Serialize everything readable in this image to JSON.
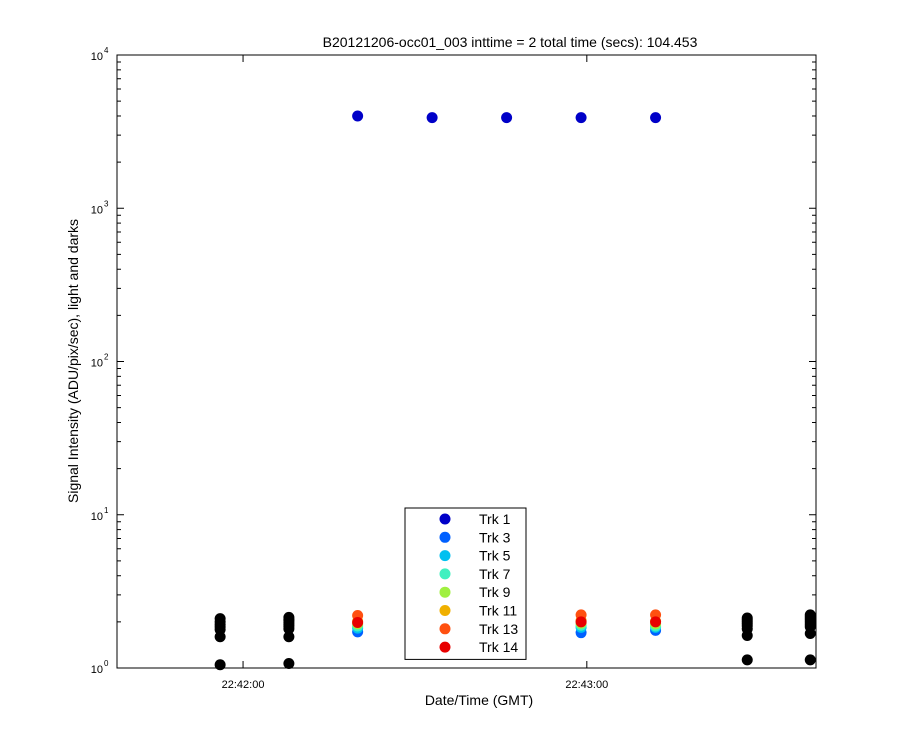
{
  "chart_data": {
    "type": "scatter",
    "title": "B20121206-occ01_003 inttime = 2 total time (secs): 104.453",
    "xlabel": "Date/Time (GMT)",
    "ylabel": "Signal Intensity (ADU/pix/sec), light and darks",
    "y_scale": "log",
    "ylim": [
      1,
      10000
    ],
    "xlim": [
      "22:41:38",
      "22:43:40"
    ],
    "x_ticks": [
      {
        "time": "22:42:00",
        "label": "22:42:00"
      },
      {
        "time": "22:43:00",
        "label": "22:43:00"
      }
    ],
    "y_ticks": [
      {
        "value": 1,
        "base": "10",
        "exp": "0"
      },
      {
        "value": 10,
        "base": "10",
        "exp": "1"
      },
      {
        "value": 100,
        "base": "10",
        "exp": "2"
      },
      {
        "value": 1000,
        "base": "10",
        "exp": "3"
      },
      {
        "value": 10000,
        "base": "10",
        "exp": "4"
      }
    ],
    "grid": false,
    "legend_position": "bottom-center",
    "series": [
      {
        "name": "Trk 1",
        "color": "#0000c8",
        "x": [
          "22:42:20",
          "22:42:33",
          "22:42:46",
          "22:42:59",
          "22:43:12"
        ],
        "y": [
          4000,
          3900,
          3900,
          3900,
          3900
        ]
      },
      {
        "name": "Trk 3",
        "color": "#0060ff",
        "x": [
          "22:42:20",
          "22:42:33",
          "22:42:46",
          "22:42:59",
          "22:43:12"
        ],
        "y": [
          1.72,
          1.72,
          1.72,
          1.7,
          1.76
        ]
      },
      {
        "name": "Trk 5",
        "color": "#00c0f0",
        "x": [
          "22:42:20",
          "22:42:33",
          "22:42:46",
          "22:42:59",
          "22:43:12"
        ],
        "y": [
          1.82,
          1.84,
          1.82,
          1.84,
          1.84
        ]
      },
      {
        "name": "Trk 7",
        "color": "#40f0c0",
        "x": [
          "22:42:20",
          "22:42:33",
          "22:42:46",
          "22:42:59",
          "22:43:12"
        ],
        "y": [
          1.88,
          1.9,
          1.88,
          1.9,
          1.88
        ]
      },
      {
        "name": "Trk 9",
        "color": "#a0f040",
        "x": [
          "22:42:20",
          "22:42:33",
          "22:42:46",
          "22:42:59",
          "22:43:12"
        ],
        "y": [
          1.94,
          1.96,
          1.94,
          1.96,
          1.94
        ]
      },
      {
        "name": "Trk 11",
        "color": "#f0b000",
        "x": [
          "22:42:20",
          "22:42:33",
          "22:42:46",
          "22:42:59",
          "22:43:12"
        ],
        "y": [
          2.02,
          2.04,
          2.04,
          2.04,
          2.02
        ]
      },
      {
        "name": "Trk 13",
        "color": "#ff5010",
        "x": [
          "22:42:20",
          "22:42:33",
          "22:42:46",
          "22:42:59",
          "22:43:12"
        ],
        "y": [
          2.2,
          2.2,
          2.22,
          2.22,
          2.22
        ]
      },
      {
        "name": "Trk 14",
        "color": "#e80000",
        "x": [
          "22:42:20",
          "22:42:33",
          "22:42:46",
          "22:42:59",
          "22:43:12"
        ],
        "y": [
          1.98,
          2.0,
          2.0,
          2.0,
          2.0
        ]
      },
      {
        "color": "#000000",
        "x": [
          "22:41:56",
          "22:41:56",
          "22:41:56",
          "22:41:56",
          "22:41:56",
          "22:41:56",
          "22:41:56",
          "22:42:08",
          "22:42:08",
          "22:42:08",
          "22:42:08",
          "22:42:08",
          "22:42:08",
          "22:42:08",
          "22:42:08",
          "22:42:08",
          "22:43:28",
          "22:43:28",
          "22:43:28",
          "22:43:28",
          "22:43:28",
          "22:43:28",
          "22:43:28",
          "22:43:28",
          "22:43:39",
          "22:43:39",
          "22:43:39",
          "22:43:39",
          "22:43:39",
          "22:43:39",
          "22:43:39",
          "22:43:39",
          "22:43:39"
        ],
        "y": [
          1.05,
          1.6,
          1.78,
          1.85,
          1.92,
          2.0,
          2.1,
          1.07,
          1.6,
          1.8,
          1.87,
          1.93,
          1.98,
          2.04,
          2.08,
          2.14,
          1.13,
          1.63,
          1.8,
          1.88,
          1.94,
          2.0,
          2.06,
          2.12,
          1.13,
          1.68,
          1.86,
          1.92,
          1.98,
          2.04,
          2.1,
          2.16,
          2.22
        ]
      }
    ]
  }
}
